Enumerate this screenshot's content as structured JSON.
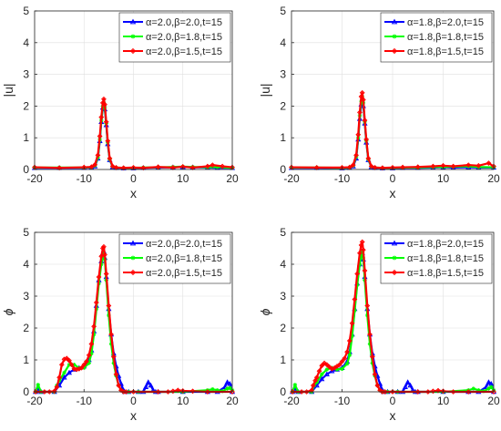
{
  "colors": {
    "blue": "#0000ff",
    "green": "#00ff00",
    "red": "#ff0000",
    "axis": "#262626",
    "grid": "#dfdfdf"
  },
  "chart_data": [
    {
      "type": "line",
      "xlabel": "x",
      "ylabel": "|u|",
      "xlim": [
        -20,
        20
      ],
      "ylim": [
        0,
        5
      ],
      "xticks": [
        -20,
        -10,
        0,
        10,
        20
      ],
      "yticks": [
        0,
        1,
        2,
        3,
        4,
        5
      ],
      "grid": true,
      "legend_position": "top-right",
      "series": [
        {
          "name": "α=2.0,β=2.0,t=15",
          "color": "#0000ff",
          "marker": "triangle",
          "x": [
            -20,
            -15,
            -10,
            -8.5,
            -7.8,
            -7.2,
            -6.8,
            -6.5,
            -6.2,
            -6.0,
            -5.8,
            -5.5,
            -5.2,
            -4.8,
            -4.2,
            -3.5,
            -2,
            0,
            2,
            5,
            8,
            10,
            12,
            15,
            17,
            20
          ],
          "y": [
            0.05,
            0.05,
            0.05,
            0.06,
            0.1,
            0.35,
            0.9,
            1.5,
            1.95,
            2.05,
            1.9,
            1.4,
            0.8,
            0.3,
            0.08,
            0.05,
            0.04,
            0.04,
            0.05,
            0.06,
            0.07,
            0.08,
            0.07,
            0.06,
            0.05,
            0.05
          ]
        },
        {
          "name": "α=2.0,β=1.8,t=15",
          "color": "#00ff00",
          "marker": "star",
          "x": [
            -20,
            -15,
            -10,
            -8.5,
            -7.8,
            -7.2,
            -6.8,
            -6.5,
            -6.2,
            -6.0,
            -5.8,
            -5.5,
            -5.2,
            -4.8,
            -4.2,
            -3.5,
            -2,
            0,
            2,
            5,
            8,
            10,
            12,
            15,
            17,
            20
          ],
          "y": [
            0.06,
            0.06,
            0.06,
            0.07,
            0.12,
            0.38,
            0.95,
            1.55,
            2.0,
            2.12,
            1.95,
            1.45,
            0.85,
            0.32,
            0.09,
            0.06,
            0.05,
            0.05,
            0.06,
            0.07,
            0.08,
            0.09,
            0.08,
            0.07,
            0.08,
            0.05
          ]
        },
        {
          "name": "α=2.0,β=1.5,t=15",
          "color": "#ff0000",
          "marker": "diamond",
          "x": [
            -20,
            -15,
            -10,
            -8.5,
            -7.8,
            -7.2,
            -6.8,
            -6.5,
            -6.2,
            -6.0,
            -5.8,
            -5.5,
            -5.2,
            -4.8,
            -4.2,
            -3.5,
            -2,
            0,
            2,
            5,
            8,
            10,
            12,
            15,
            16,
            18,
            20
          ],
          "y": [
            0.07,
            0.05,
            0.07,
            0.08,
            0.15,
            0.45,
            1.05,
            1.65,
            2.1,
            2.22,
            2.05,
            1.5,
            0.9,
            0.35,
            0.1,
            0.06,
            0.05,
            0.06,
            0.05,
            0.08,
            0.06,
            0.09,
            0.06,
            0.1,
            0.14,
            0.1,
            0.07
          ]
        }
      ]
    },
    {
      "type": "line",
      "xlabel": "x",
      "ylabel": "|u|",
      "xlim": [
        -20,
        20
      ],
      "ylim": [
        0,
        5
      ],
      "xticks": [
        -20,
        -10,
        0,
        10,
        20
      ],
      "yticks": [
        0,
        1,
        2,
        3,
        4,
        5
      ],
      "grid": true,
      "legend_position": "top-right",
      "series": [
        {
          "name": "α=1.8,β=2.0,t=15",
          "color": "#0000ff",
          "marker": "triangle",
          "x": [
            -20,
            -15,
            -10,
            -8.5,
            -7.8,
            -7.2,
            -6.8,
            -6.5,
            -6.2,
            -6.0,
            -5.8,
            -5.5,
            -5.2,
            -4.8,
            -4.2,
            -3.5,
            -2,
            0,
            2,
            5,
            8,
            10,
            12,
            15,
            17,
            20
          ],
          "y": [
            0.05,
            0.05,
            0.04,
            0.05,
            0.1,
            0.35,
            0.95,
            1.6,
            2.05,
            2.15,
            2.0,
            1.45,
            0.85,
            0.3,
            0.08,
            0.05,
            0.04,
            0.04,
            0.05,
            0.05,
            0.06,
            0.07,
            0.06,
            0.07,
            0.06,
            0.06
          ]
        },
        {
          "name": "α=1.8,β=1.8,t=15",
          "color": "#00ff00",
          "marker": "star",
          "x": [
            -20,
            -15,
            -10,
            -8.5,
            -7.8,
            -7.2,
            -6.8,
            -6.5,
            -6.2,
            -6.0,
            -5.8,
            -5.5,
            -5.2,
            -4.8,
            -4.2,
            -3.5,
            -2,
            0,
            2,
            5,
            8,
            10,
            12,
            15,
            17,
            20
          ],
          "y": [
            0.06,
            0.06,
            0.05,
            0.06,
            0.12,
            0.4,
            1.0,
            1.7,
            2.15,
            2.3,
            2.1,
            1.5,
            0.9,
            0.32,
            0.09,
            0.06,
            0.05,
            0.05,
            0.06,
            0.06,
            0.08,
            0.08,
            0.09,
            0.1,
            0.08,
            0.07
          ]
        },
        {
          "name": "α=1.8,β=1.5,t=15",
          "color": "#ff0000",
          "marker": "diamond",
          "x": [
            -20,
            -15,
            -10,
            -8.5,
            -7.8,
            -7.2,
            -6.8,
            -6.5,
            -6.2,
            -6.0,
            -5.8,
            -5.5,
            -5.2,
            -4.8,
            -4.2,
            -3.5,
            -2,
            0,
            2,
            5,
            8,
            10,
            12,
            15,
            17,
            19,
            20
          ],
          "y": [
            0.07,
            0.06,
            0.06,
            0.07,
            0.14,
            0.45,
            1.1,
            1.8,
            2.3,
            2.42,
            2.2,
            1.55,
            0.95,
            0.35,
            0.1,
            0.06,
            0.05,
            0.06,
            0.07,
            0.08,
            0.1,
            0.12,
            0.1,
            0.14,
            0.12,
            0.2,
            0.1
          ]
        }
      ]
    },
    {
      "type": "line",
      "xlabel": "x",
      "ylabel": "ϕ",
      "xlim": [
        -20,
        20
      ],
      "ylim": [
        0,
        5
      ],
      "xticks": [
        -20,
        -10,
        0,
        10,
        20
      ],
      "yticks": [
        0,
        1,
        2,
        3,
        4,
        5
      ],
      "grid": true,
      "legend_position": "top-right",
      "series": [
        {
          "name": "α=2.0,β=2.0,t=15",
          "color": "#0000ff",
          "marker": "triangle",
          "x": [
            -19.8,
            -19.3,
            -18.7,
            -16,
            -15,
            -14,
            -13,
            -12,
            -11,
            -10,
            -9,
            -8.5,
            -8,
            -7.5,
            -7,
            -6.5,
            -6.2,
            -6.0,
            -5.8,
            -5.5,
            -5,
            -4.5,
            -4,
            -3.5,
            -3,
            -2.5,
            -2.2,
            -1.8,
            -1,
            1,
            2,
            2.5,
            3,
            3.5,
            4,
            4.5,
            5,
            10,
            15,
            17,
            18.5,
            19,
            19.5,
            20
          ],
          "y": [
            0.0,
            0.1,
            0.0,
            0.0,
            0.2,
            0.45,
            0.6,
            0.7,
            0.75,
            0.8,
            1.0,
            1.3,
            1.9,
            2.7,
            3.5,
            4.1,
            4.35,
            4.4,
            4.2,
            3.6,
            2.6,
            1.8,
            1.2,
            0.8,
            0.5,
            0.25,
            0.1,
            0.0,
            0.0,
            0.0,
            0.0,
            0.15,
            0.3,
            0.2,
            0.05,
            0.0,
            0.0,
            0.0,
            0.0,
            0.0,
            0.15,
            0.3,
            0.25,
            0.0
          ]
        },
        {
          "name": "α=2.0,β=1.8,t=15",
          "color": "#00ff00",
          "marker": "star",
          "x": [
            -19.8,
            -19.3,
            -18.7,
            -16,
            -15.5,
            -15,
            -14,
            -13,
            -12,
            -11,
            -10,
            -9,
            -8.5,
            -8,
            -7.5,
            -7,
            -6.5,
            -6.2,
            -6.0,
            -5.8,
            -5.5,
            -5,
            -4.5,
            -4,
            -3.5,
            -3,
            -2.5,
            -2,
            -1,
            1,
            10,
            15,
            16,
            17,
            18,
            19,
            19.5,
            20
          ],
          "y": [
            0.0,
            0.22,
            0.0,
            0.0,
            0.2,
            0.35,
            0.6,
            0.85,
            0.85,
            0.75,
            0.75,
            0.9,
            1.2,
            1.8,
            2.6,
            3.4,
            4.0,
            4.3,
            4.35,
            4.15,
            3.5,
            2.4,
            1.5,
            0.9,
            0.5,
            0.2,
            0.05,
            0.0,
            0.0,
            0.0,
            0.0,
            0.05,
            0.08,
            0.05,
            0.02,
            0.1,
            0.12,
            0.05
          ]
        },
        {
          "name": "α=2.0,β=1.5,t=15",
          "color": "#ff0000",
          "marker": "diamond",
          "x": [
            -19.8,
            -18,
            -17,
            -16,
            -15.5,
            -15,
            -14.5,
            -14,
            -13.5,
            -13,
            -12.5,
            -12,
            -11.5,
            -11,
            -10.5,
            -10,
            -9.5,
            -9,
            -8.5,
            -8,
            -7.5,
            -7,
            -6.5,
            -6.2,
            -6.0,
            -5.8,
            -5.5,
            -5,
            -4.5,
            -4,
            -3.5,
            -3,
            -2.5,
            -2,
            -1.5,
            0,
            5,
            7,
            8,
            9,
            10,
            12,
            15,
            20
          ],
          "y": [
            0.0,
            0.0,
            0.0,
            0.02,
            0.15,
            0.45,
            0.85,
            1.02,
            1.05,
            0.98,
            0.85,
            0.72,
            0.7,
            0.72,
            0.75,
            0.85,
            0.95,
            1.15,
            1.5,
            2.05,
            2.8,
            3.6,
            4.25,
            4.5,
            4.55,
            4.3,
            3.7,
            2.7,
            1.8,
            1.1,
            0.55,
            0.2,
            0.05,
            0.0,
            0.0,
            0.0,
            0.0,
            0.0,
            0.02,
            0.05,
            0.03,
            0.02,
            0.0,
            0.0
          ]
        }
      ]
    },
    {
      "type": "line",
      "xlabel": "x",
      "ylabel": "ϕ",
      "xlim": [
        -20,
        20
      ],
      "ylim": [
        0,
        5
      ],
      "xticks": [
        -20,
        -10,
        0,
        10,
        20
      ],
      "yticks": [
        0,
        1,
        2,
        3,
        4,
        5
      ],
      "grid": true,
      "legend_position": "top-right",
      "series": [
        {
          "name": "α=1.8,β=2.0,t=15",
          "color": "#0000ff",
          "marker": "triangle",
          "x": [
            -19.8,
            -19.3,
            -18.7,
            -16,
            -15,
            -14,
            -13,
            -12,
            -11,
            -10,
            -9,
            -8.5,
            -8,
            -7.5,
            -7,
            -6.5,
            -6.2,
            -6.0,
            -5.8,
            -5.5,
            -5,
            -4.5,
            -4,
            -3.5,
            -3,
            -2.5,
            -2.2,
            -1.8,
            -1,
            1,
            2,
            2.5,
            3,
            3.5,
            4,
            4.5,
            5,
            10,
            15,
            17,
            18.5,
            19,
            19.5,
            20
          ],
          "y": [
            0.0,
            0.1,
            0.0,
            0.0,
            0.2,
            0.4,
            0.55,
            0.65,
            0.7,
            0.75,
            0.95,
            1.25,
            1.8,
            2.6,
            3.4,
            4.0,
            4.3,
            4.35,
            4.15,
            3.6,
            2.6,
            1.8,
            1.2,
            0.8,
            0.5,
            0.25,
            0.1,
            0.0,
            0.0,
            0.0,
            0.0,
            0.15,
            0.3,
            0.2,
            0.05,
            0.0,
            0.0,
            0.0,
            0.0,
            0.0,
            0.15,
            0.3,
            0.25,
            0.0
          ]
        },
        {
          "name": "α=1.8,β=1.8,t=15",
          "color": "#00ff00",
          "marker": "star",
          "x": [
            -19.8,
            -19.3,
            -18.7,
            -16,
            -15.5,
            -15,
            -14,
            -13,
            -12,
            -11,
            -10,
            -9,
            -8.5,
            -8,
            -7.5,
            -7,
            -6.5,
            -6.2,
            -6.0,
            -5.8,
            -5.5,
            -5,
            -4.5,
            -4,
            -3.5,
            -3,
            -2.5,
            -2,
            -1,
            1,
            10,
            15,
            16,
            17,
            18,
            19,
            19.5,
            20
          ],
          "y": [
            0.0,
            0.22,
            0.0,
            0.0,
            0.2,
            0.3,
            0.55,
            0.7,
            0.75,
            0.7,
            0.72,
            0.88,
            1.15,
            1.75,
            2.55,
            3.35,
            4.0,
            4.3,
            4.4,
            4.2,
            3.5,
            2.4,
            1.5,
            0.9,
            0.5,
            0.2,
            0.05,
            0.0,
            0.0,
            0.0,
            0.0,
            0.05,
            0.1,
            0.05,
            0.02,
            0.1,
            0.15,
            0.05
          ]
        },
        {
          "name": "α=1.8,β=1.5,t=15",
          "color": "#ff0000",
          "marker": "diamond",
          "x": [
            -19.8,
            -18,
            -17,
            -16,
            -15.7,
            -15.3,
            -15,
            -14.5,
            -14,
            -13.5,
            -13,
            -12.5,
            -12,
            -11.5,
            -11,
            -10.5,
            -10,
            -9.5,
            -9,
            -8.5,
            -8,
            -7.5,
            -7,
            -6.5,
            -6.2,
            -6.0,
            -5.8,
            -5.5,
            -5,
            -4.5,
            -4,
            -3.5,
            -3,
            -2.5,
            -2,
            -1.5,
            0,
            5,
            7,
            8,
            9,
            10,
            12,
            15,
            20
          ],
          "y": [
            0.0,
            0.0,
            0.0,
            0.05,
            0.2,
            0.35,
            0.45,
            0.65,
            0.82,
            0.9,
            0.85,
            0.78,
            0.72,
            0.75,
            0.8,
            0.85,
            0.95,
            1.05,
            1.25,
            1.6,
            2.15,
            2.9,
            3.7,
            4.35,
            4.6,
            4.7,
            4.45,
            3.8,
            2.7,
            1.8,
            1.1,
            0.55,
            0.2,
            0.05,
            0.0,
            0.0,
            0.0,
            0.0,
            0.0,
            0.02,
            0.04,
            0.02,
            0.0,
            0.0,
            0.0
          ]
        }
      ]
    }
  ]
}
